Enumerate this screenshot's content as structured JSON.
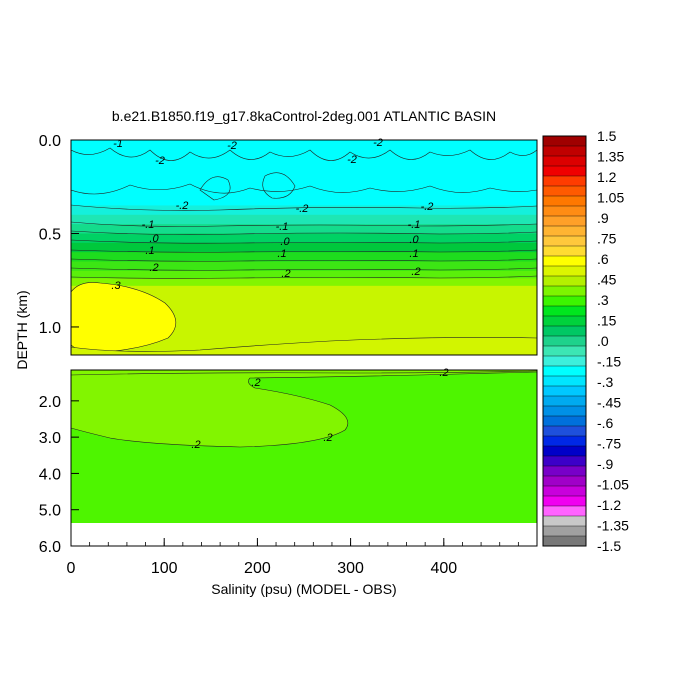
{
  "chart_data": {
    "type": "heatmap",
    "title": "b.e21.B1850.f19_g17.8kaControl-2deg.001 ATLANTIC BASIN",
    "xlabel": "Salinity (psu) (MODEL - OBS)",
    "ylabel": "DEPTH (km)",
    "xlim": [
      0,
      500
    ],
    "x_ticks": [
      "0",
      "100",
      "200",
      "300",
      "400"
    ],
    "upper_panel": {
      "ylim": [
        0.0,
        1.15
      ],
      "y_ticks": [
        "0.0",
        "0.5",
        "1.0"
      ]
    },
    "lower_panel": {
      "ylim": [
        1.15,
        6.0
      ],
      "y_ticks": [
        "2.0",
        "3.0",
        "4.0",
        "5.0",
        "6.0"
      ]
    },
    "bands_upper": [
      {
        "depth": [
          0.0,
          0.35
        ],
        "value": -0.3,
        "color": "#00ffff"
      },
      {
        "depth": [
          0.35,
          0.4
        ],
        "value": -0.25,
        "color": "#14f0dc"
      },
      {
        "depth": [
          0.4,
          0.45
        ],
        "value": -0.2,
        "color": "#1ee6b4"
      },
      {
        "depth": [
          0.45,
          0.5
        ],
        "value": -0.1,
        "color": "#14dc8c"
      },
      {
        "depth": [
          0.5,
          0.55
        ],
        "value": -0.05,
        "color": "#00d264"
      },
      {
        "depth": [
          0.55,
          0.6
        ],
        "value": 0.0,
        "color": "#00c83c"
      },
      {
        "depth": [
          0.6,
          0.65
        ],
        "value": 0.05,
        "color": "#1edc1e"
      },
      {
        "depth": [
          0.65,
          0.7
        ],
        "value": 0.1,
        "color": "#3ce614"
      },
      {
        "depth": [
          0.7,
          0.74
        ],
        "value": 0.15,
        "color": "#5af00a"
      },
      {
        "depth": [
          0.74,
          0.78
        ],
        "value": 0.2,
        "color": "#82f500"
      },
      {
        "depth": [
          0.78,
          1.15
        ],
        "value": 0.3,
        "color": "#c8f500"
      }
    ],
    "regions": [
      {
        "panel": "upper",
        "value": 0.35,
        "color": "#ffff00",
        "location": "west, 0.70-1.10 km"
      },
      {
        "panel": "lower",
        "value": 0.25,
        "color": "#82f500",
        "location": "1.2-3.3 km, 0-300 psu"
      },
      {
        "panel": "lower",
        "value": 0.2,
        "color": "#4ef500",
        "location": "1.2-5.3 km"
      }
    ],
    "contour_labels": [
      {
        "text": "-1",
        "panel": "upper"
      },
      {
        "text": "-2",
        "panel": "upper"
      },
      {
        "text": "-2",
        "panel": "upper"
      },
      {
        "text": "-2",
        "panel": "upper"
      },
      {
        "text": "-2",
        "panel": "upper"
      },
      {
        "text": "-.2",
        "panel": "upper"
      },
      {
        "text": "-.2",
        "panel": "upper"
      },
      {
        "text": "-.2",
        "panel": "upper"
      },
      {
        "text": "-.1",
        "panel": "upper"
      },
      {
        "text": "-.1",
        "panel": "upper"
      },
      {
        "text": "-.1",
        "panel": "upper"
      },
      {
        "text": ".0",
        "panel": "upper"
      },
      {
        "text": ".0",
        "panel": "upper"
      },
      {
        "text": ".0",
        "panel": "upper"
      },
      {
        "text": ".1",
        "panel": "upper"
      },
      {
        "text": ".1",
        "panel": "upper"
      },
      {
        "text": ".1",
        "panel": "upper"
      },
      {
        "text": ".2",
        "panel": "upper"
      },
      {
        "text": ".2",
        "panel": "upper"
      },
      {
        "text": ".2",
        "panel": "upper"
      },
      {
        "text": ".3",
        "panel": "upper"
      },
      {
        "text": ".2",
        "panel": "lower"
      },
      {
        "text": ".2",
        "panel": "lower"
      },
      {
        "text": ".2",
        "panel": "lower"
      },
      {
        "text": ".2",
        "panel": "lower"
      }
    ],
    "colorbar": {
      "labels": [
        "1.5",
        "1.35",
        "1.2",
        "1.05",
        ".9",
        ".75",
        ".6",
        ".45",
        ".3",
        ".15",
        ".0",
        "-.15",
        "-.3",
        "-.45",
        "-.6",
        "-.75",
        "-.9",
        "-1.05",
        "-1.2",
        "-1.35",
        "-1.5"
      ],
      "colors": [
        "#a00000",
        "#c00000",
        "#dc0000",
        "#f00000",
        "#ff3c00",
        "#ff5a00",
        "#ff7800",
        "#ff8c14",
        "#ffa028",
        "#ffb432",
        "#ffc83c",
        "#ffdc32",
        "#ffff00",
        "#dcf500",
        "#b4f000",
        "#7df500",
        "#3cf500",
        "#00e61e",
        "#00d23c",
        "#00c864",
        "#1ed28c",
        "#3ce6b4",
        "#3cf0dc",
        "#00ffff",
        "#00e6ff",
        "#00c8ff",
        "#00aaf0",
        "#0090e6",
        "#0070dc",
        "#1e50dc",
        "#0028e6",
        "#0000c8",
        "#3c00c8",
        "#7800c8",
        "#a000c8",
        "#c800dc",
        "#f000f0",
        "#ff64ff",
        "#c8c8c8",
        "#a0a0a0",
        "#787878"
      ]
    }
  }
}
